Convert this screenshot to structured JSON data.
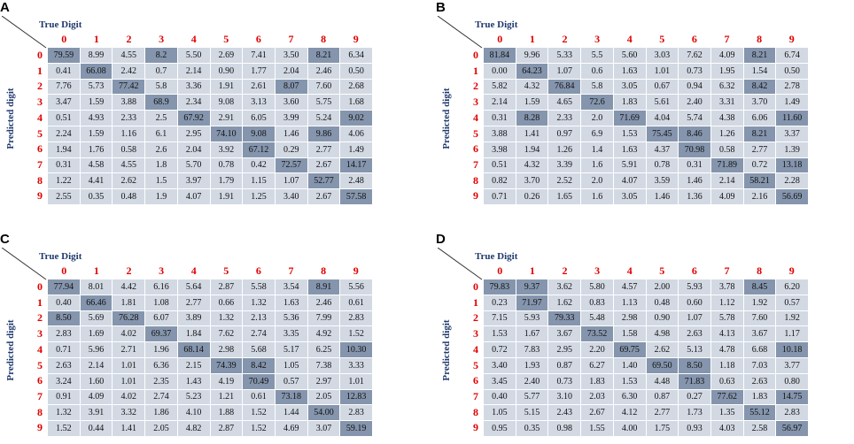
{
  "chart_data": [
    {
      "type": "heatmap",
      "panel": "A",
      "xlabel": "True Digit",
      "ylabel": "Predicted digit",
      "x_categories": [
        "0",
        "1",
        "2",
        "3",
        "4",
        "5",
        "6",
        "7",
        "8",
        "9"
      ],
      "y_categories": [
        "0",
        "1",
        "2",
        "3",
        "4",
        "5",
        "6",
        "7",
        "8",
        "9"
      ],
      "values": [
        [
          "79.59",
          "8.99",
          "4.55",
          "8.2",
          "5.50",
          "2.69",
          "7.41",
          "3.50",
          "8.21",
          "6.34"
        ],
        [
          "0.41",
          "66.08",
          "2.42",
          "0.7",
          "2.14",
          "0.90",
          "1.77",
          "2.04",
          "2.46",
          "0.50"
        ],
        [
          "7.76",
          "5.73",
          "77.42",
          "5.8",
          "3.36",
          "1.91",
          "2.61",
          "8.07",
          "7.60",
          "2.68"
        ],
        [
          "3.47",
          "1.59",
          "3.88",
          "68.9",
          "2.34",
          "9.08",
          "3.13",
          "3.60",
          "5.75",
          "1.68"
        ],
        [
          "0.51",
          "4.93",
          "2.33",
          "2.5",
          "67.92",
          "2.91",
          "6.05",
          "3.99",
          "5.24",
          "9.02"
        ],
        [
          "2.24",
          "1.59",
          "1.16",
          "6.1",
          "2.95",
          "74.10",
          "9.08",
          "1.46",
          "9.86",
          "4.06"
        ],
        [
          "1.94",
          "1.76",
          "0.58",
          "2.6",
          "2.04",
          "3.92",
          "67.12",
          "0.29",
          "2.77",
          "1.49"
        ],
        [
          "0.31",
          "4.58",
          "4.55",
          "1.8",
          "5.70",
          "0.78",
          "0.42",
          "72.57",
          "2.67",
          "14.17"
        ],
        [
          "1.22",
          "4.41",
          "2.62",
          "1.5",
          "3.97",
          "1.79",
          "1.15",
          "1.07",
          "52.77",
          "2.48"
        ],
        [
          "2.55",
          "0.35",
          "0.48",
          "1.9",
          "4.07",
          "1.91",
          "1.25",
          "3.40",
          "2.67",
          "57.58"
        ]
      ],
      "highlighted": [
        [
          0,
          0
        ],
        [
          0,
          3
        ],
        [
          0,
          8
        ],
        [
          1,
          1
        ],
        [
          2,
          2
        ],
        [
          2,
          7
        ],
        [
          3,
          3
        ],
        [
          4,
          4
        ],
        [
          4,
          9
        ],
        [
          5,
          5
        ],
        [
          5,
          6
        ],
        [
          5,
          8
        ],
        [
          6,
          6
        ],
        [
          7,
          7
        ],
        [
          7,
          9
        ],
        [
          8,
          8
        ],
        [
          9,
          9
        ]
      ]
    },
    {
      "type": "heatmap",
      "panel": "B",
      "xlabel": "True Digit",
      "ylabel": "Predicted digit",
      "x_categories": [
        "0",
        "1",
        "2",
        "3",
        "4",
        "5",
        "6",
        "7",
        "8",
        "9"
      ],
      "y_categories": [
        "0",
        "1",
        "2",
        "3",
        "4",
        "5",
        "6",
        "7",
        "8",
        "9"
      ],
      "values": [
        [
          "81.84",
          "9.96",
          "5.33",
          "5.5",
          "5.60",
          "3.03",
          "7.62",
          "4.09",
          "8.21",
          "6.74"
        ],
        [
          "0.00",
          "64.23",
          "1.07",
          "0.6",
          "1.63",
          "1.01",
          "0.73",
          "1.95",
          "1.54",
          "0.50"
        ],
        [
          "5.82",
          "4.32",
          "76.84",
          "5.8",
          "3.05",
          "0.67",
          "0.94",
          "6.32",
          "8.42",
          "2.78"
        ],
        [
          "2.14",
          "1.59",
          "4.65",
          "72.6",
          "1.83",
          "5.61",
          "2.40",
          "3.31",
          "3.70",
          "1.49"
        ],
        [
          "0.31",
          "8.28",
          "2.33",
          "2.0",
          "71.69",
          "4.04",
          "5.74",
          "4.38",
          "6.06",
          "11.60"
        ],
        [
          "3.88",
          "1.41",
          "0.97",
          "6.9",
          "1.53",
          "75.45",
          "8.46",
          "1.26",
          "8.21",
          "3.37"
        ],
        [
          "3.98",
          "1.94",
          "1.26",
          "1.4",
          "1.63",
          "4.37",
          "70.98",
          "0.58",
          "2.77",
          "1.39"
        ],
        [
          "0.51",
          "4.32",
          "3.39",
          "1.6",
          "5.91",
          "0.78",
          "0.31",
          "71.89",
          "0.72",
          "13.18"
        ],
        [
          "0.82",
          "3.70",
          "2.52",
          "2.0",
          "4.07",
          "3.59",
          "1.46",
          "2.14",
          "58.21",
          "2.28"
        ],
        [
          "0.71",
          "0.26",
          "1.65",
          "1.6",
          "3.05",
          "1.46",
          "1.36",
          "4.09",
          "2.16",
          "56.69"
        ]
      ],
      "highlighted": [
        [
          0,
          0
        ],
        [
          0,
          8
        ],
        [
          1,
          1
        ],
        [
          2,
          2
        ],
        [
          2,
          8
        ],
        [
          3,
          3
        ],
        [
          4,
          1
        ],
        [
          4,
          4
        ],
        [
          4,
          9
        ],
        [
          5,
          5
        ],
        [
          5,
          6
        ],
        [
          5,
          8
        ],
        [
          6,
          6
        ],
        [
          7,
          7
        ],
        [
          7,
          9
        ],
        [
          8,
          8
        ],
        [
          9,
          9
        ]
      ]
    },
    {
      "type": "heatmap",
      "panel": "C",
      "xlabel": "True Digit",
      "ylabel": "Predicted digit",
      "x_categories": [
        "0",
        "1",
        "2",
        "3",
        "4",
        "5",
        "6",
        "7",
        "8",
        "9"
      ],
      "y_categories": [
        "0",
        "1",
        "2",
        "3",
        "4",
        "5",
        "6",
        "7",
        "8",
        "9"
      ],
      "values": [
        [
          "77.94",
          "8.01",
          "4.42",
          "6.16",
          "5.64",
          "2.87",
          "5.58",
          "3.54",
          "8.91",
          "5.56"
        ],
        [
          "0.40",
          "66.46",
          "1.81",
          "1.08",
          "2.77",
          "0.66",
          "1.32",
          "1.63",
          "2.46",
          "0.61"
        ],
        [
          "8.50",
          "5.69",
          "76.28",
          "6.07",
          "3.89",
          "1.32",
          "2.13",
          "5.36",
          "7.99",
          "2.83"
        ],
        [
          "2.83",
          "1.69",
          "4.02",
          "69.37",
          "1.84",
          "7.62",
          "2.74",
          "3.35",
          "4.92",
          "1.52"
        ],
        [
          "0.71",
          "5.96",
          "2.71",
          "1.96",
          "68.14",
          "2.98",
          "5.68",
          "5.17",
          "6.25",
          "10.30"
        ],
        [
          "2.63",
          "2.14",
          "1.01",
          "6.36",
          "2.15",
          "74.39",
          "8.42",
          "1.05",
          "7.38",
          "3.33"
        ],
        [
          "3.24",
          "1.60",
          "1.01",
          "2.35",
          "1.43",
          "4.19",
          "70.49",
          "0.57",
          "2.97",
          "1.01"
        ],
        [
          "0.91",
          "4.09",
          "4.02",
          "2.74",
          "5.23",
          "1.21",
          "0.61",
          "73.18",
          "2.05",
          "12.83"
        ],
        [
          "1.32",
          "3.91",
          "3.32",
          "1.86",
          "4.10",
          "1.88",
          "1.52",
          "1.44",
          "54.00",
          "2.83"
        ],
        [
          "1.52",
          "0.44",
          "1.41",
          "2.05",
          "4.82",
          "2.87",
          "1.52",
          "4.69",
          "3.07",
          "59.19"
        ]
      ],
      "highlighted": [
        [
          0,
          0
        ],
        [
          0,
          8
        ],
        [
          1,
          1
        ],
        [
          2,
          0
        ],
        [
          2,
          2
        ],
        [
          3,
          3
        ],
        [
          4,
          4
        ],
        [
          4,
          9
        ],
        [
          5,
          5
        ],
        [
          5,
          6
        ],
        [
          6,
          6
        ],
        [
          7,
          7
        ],
        [
          7,
          9
        ],
        [
          8,
          8
        ],
        [
          9,
          9
        ]
      ]
    },
    {
      "type": "heatmap",
      "panel": "D",
      "xlabel": "True Digit",
      "ylabel": "Predicted digit",
      "x_categories": [
        "0",
        "1",
        "2",
        "3",
        "4",
        "5",
        "6",
        "7",
        "8",
        "9"
      ],
      "y_categories": [
        "0",
        "1",
        "2",
        "3",
        "4",
        "5",
        "6",
        "7",
        "8",
        "9"
      ],
      "values": [
        [
          "79.83",
          "9.37",
          "3.62",
          "5.80",
          "4.57",
          "2.00",
          "5.93",
          "3.78",
          "8.45",
          "6.20"
        ],
        [
          "0.23",
          "71.97",
          "1.62",
          "0.83",
          "1.13",
          "0.48",
          "0.60",
          "1.12",
          "1.92",
          "0.57"
        ],
        [
          "7.15",
          "5.93",
          "79.33",
          "5.48",
          "2.98",
          "0.90",
          "1.07",
          "5.78",
          "7.60",
          "1.92"
        ],
        [
          "1.53",
          "1.67",
          "3.67",
          "73.52",
          "1.58",
          "4.98",
          "2.63",
          "4.13",
          "3.67",
          "1.17"
        ],
        [
          "0.72",
          "7.83",
          "2.95",
          "2.20",
          "69.75",
          "2.62",
          "5.13",
          "4.78",
          "6.68",
          "10.18"
        ],
        [
          "3.40",
          "1.93",
          "0.87",
          "6.27",
          "1.40",
          "69.50",
          "8.50",
          "1.18",
          "7.03",
          "3.77"
        ],
        [
          "3.45",
          "2.40",
          "0.73",
          "1.83",
          "1.53",
          "4.48",
          "71.83",
          "0.63",
          "2.63",
          "0.80"
        ],
        [
          "0.40",
          "5.77",
          "3.10",
          "2.03",
          "6.30",
          "0.87",
          "0.27",
          "77.62",
          "1.83",
          "14.75"
        ],
        [
          "1.05",
          "5.15",
          "2.43",
          "2.67",
          "4.12",
          "2.77",
          "1.73",
          "1.35",
          "55.12",
          "2.83"
        ],
        [
          "0.95",
          "0.35",
          "0.98",
          "1.55",
          "4.00",
          "1.75",
          "0.93",
          "4.03",
          "2.58",
          "56.97"
        ]
      ],
      "highlighted": [
        [
          0,
          0
        ],
        [
          0,
          1
        ],
        [
          0,
          8
        ],
        [
          1,
          1
        ],
        [
          2,
          2
        ],
        [
          3,
          3
        ],
        [
          4,
          4
        ],
        [
          4,
          9
        ],
        [
          5,
          5
        ],
        [
          5,
          6
        ],
        [
          6,
          6
        ],
        [
          7,
          7
        ],
        [
          7,
          9
        ],
        [
          8,
          8
        ],
        [
          9,
          9
        ]
      ]
    }
  ]
}
